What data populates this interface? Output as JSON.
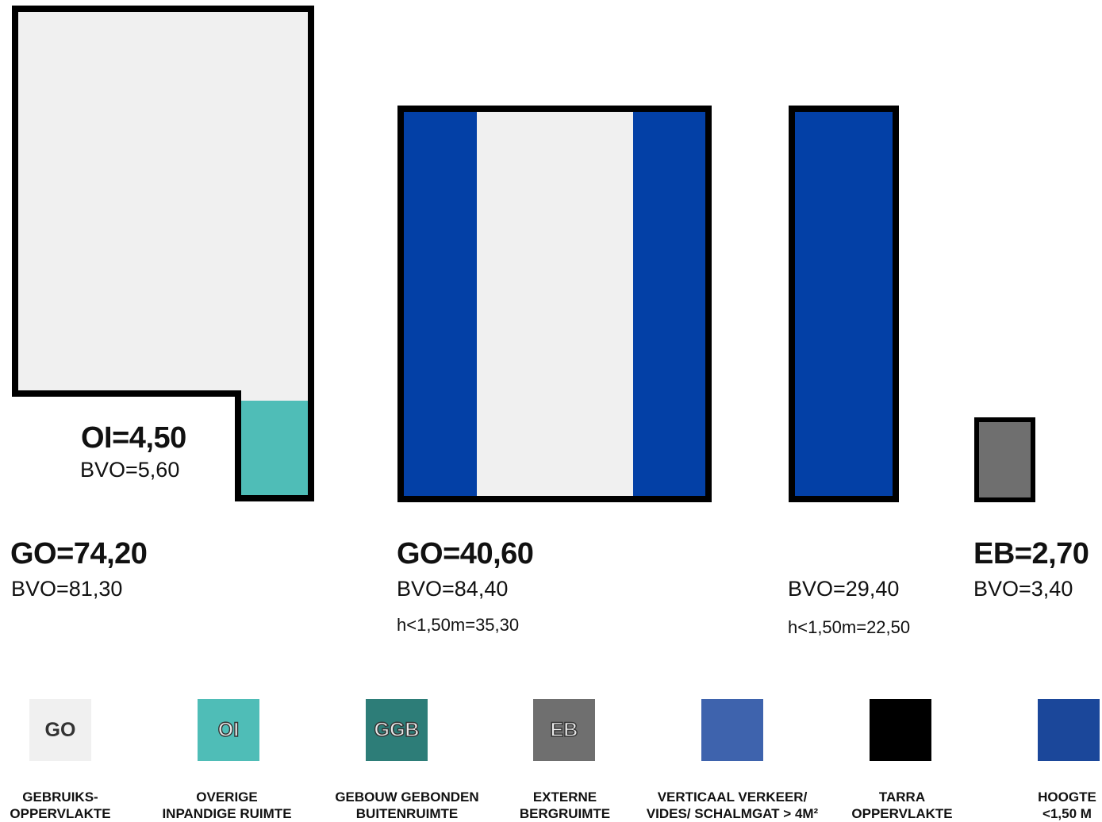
{
  "shapes": {
    "left": {
      "go": "GO=74,20",
      "bvo": "BVO=81,30",
      "oi": "OI=4,50",
      "oi_bvo": "BVO=5,60"
    },
    "middle": {
      "go": "GO=40,60",
      "bvo": "BVO=84,40",
      "h": "h<1,50m=35,30"
    },
    "right": {
      "bvo": "BVO=29,40",
      "h": "h<1,50m=22,50"
    },
    "small": {
      "eb": "EB=2,70",
      "bvo": "BVO=3,40"
    }
  },
  "colors": {
    "go": "#f0f0f0",
    "oi": "#4fbdb7",
    "ggb": "#2d7d78",
    "eb": "#6f6f6f",
    "verticaal": "#3e63ad",
    "tarra": "#000000",
    "hoogte": "#1b479a",
    "blue_fill": "#0340a6"
  },
  "legend": [
    {
      "code": "GO",
      "line1": "GEBRUIKS-",
      "line2": "OPPERVLAKTE"
    },
    {
      "code": "OI",
      "line1": "OVERIGE",
      "line2": "INPANDIGE RUIMTE"
    },
    {
      "code": "GGB",
      "line1": "GEBOUW GEBONDEN",
      "line2": "BUITENRUIMTE"
    },
    {
      "code": "EB",
      "line1": "EXTERNE",
      "line2": "BERGRUIMTE"
    },
    {
      "code": "",
      "line1": "VERTICAAL VERKEER/",
      "line2": "VIDES/ SCHALMGAT > 4M²"
    },
    {
      "code": "",
      "line1": "TARRA",
      "line2": "OPPERVLAKTE"
    },
    {
      "code": "",
      "line1": "HOOGTE",
      "line2": "<1,50 M"
    }
  ]
}
